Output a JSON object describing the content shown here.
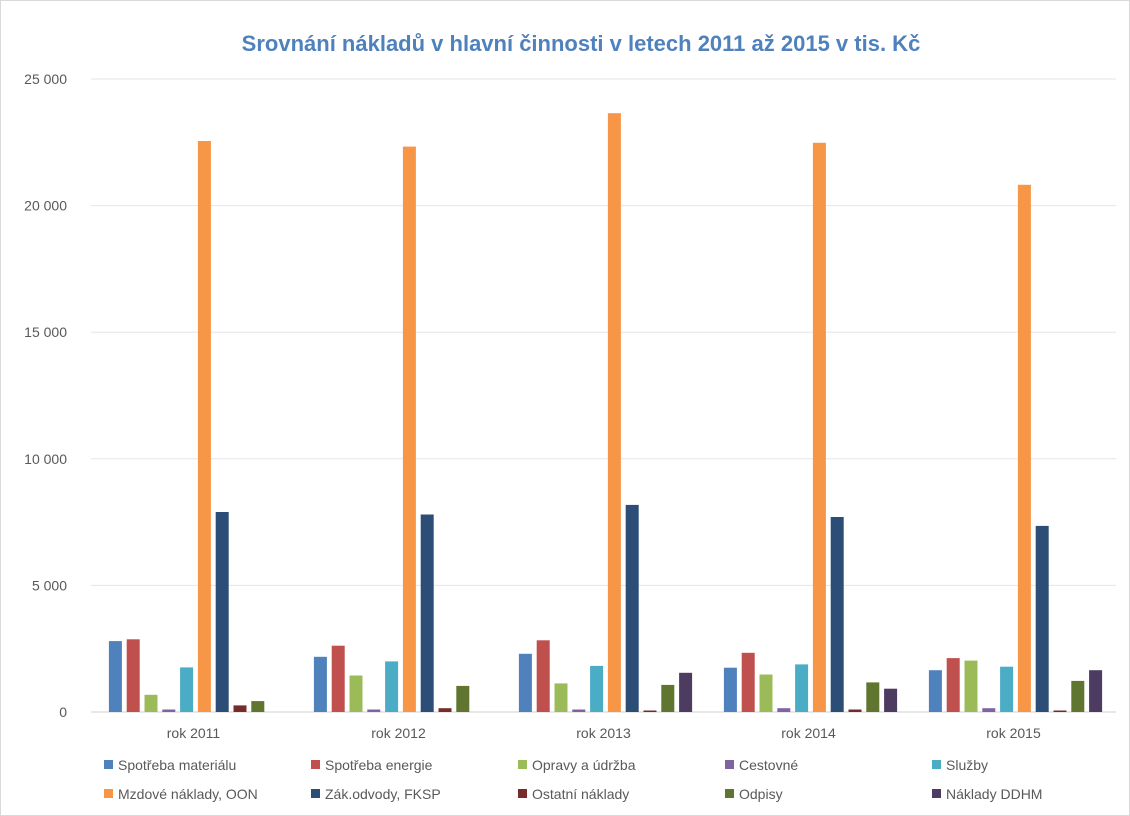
{
  "chart_data": {
    "type": "bar",
    "title": "Srovnání nákladů v hlavní činnosti v letech 2011 až 2015 v tis. Kč",
    "title_color": "#4F81BD",
    "xlabel": "",
    "ylabel": "",
    "ylim": [
      0,
      25000
    ],
    "yticks": [
      0,
      5000,
      10000,
      15000,
      20000,
      25000
    ],
    "ytick_labels": [
      "0",
      "5 000",
      "10 000",
      "15 000",
      "20 000",
      "25 000"
    ],
    "grid": true,
    "legend_position": "bottom",
    "categories": [
      "rok 2011",
      "rok 2012",
      "rok 2013",
      "rok 2014",
      "rok 2015"
    ],
    "series": [
      {
        "name": "Spotřeba materiálu",
        "color": "#4F81BD",
        "values": [
          2800,
          2180,
          2300,
          1750,
          1650
        ]
      },
      {
        "name": "Spotřeba energie",
        "color": "#C0504D",
        "values": [
          2870,
          2620,
          2830,
          2340,
          2130
        ]
      },
      {
        "name": "Opravy a údržba",
        "color": "#9BBB59",
        "values": [
          680,
          1440,
          1130,
          1480,
          2030
        ]
      },
      {
        "name": "Cestovné",
        "color": "#8064A2",
        "values": [
          100,
          100,
          100,
          150,
          150
        ]
      },
      {
        "name": "Služby",
        "color": "#4BACC6",
        "values": [
          1760,
          2000,
          1820,
          1880,
          1790
        ]
      },
      {
        "name": "Mzdové náklady, OON",
        "color": "#F79646",
        "values": [
          22550,
          22330,
          23650,
          22480,
          20820
        ]
      },
      {
        "name": "Zák.odvody, FKSP",
        "color": "#2C4D75",
        "values": [
          7900,
          7800,
          8180,
          7700,
          7350
        ]
      },
      {
        "name": "Ostatní náklady",
        "color": "#772C2A",
        "values": [
          260,
          150,
          60,
          100,
          60
        ]
      },
      {
        "name": "Odpisy",
        "color": "#5F7530",
        "values": [
          430,
          1030,
          1070,
          1170,
          1230
        ]
      },
      {
        "name": "Náklady DDHM",
        "color": "#4D3B62",
        "values": [
          0,
          0,
          1550,
          920,
          1650
        ]
      }
    ]
  }
}
